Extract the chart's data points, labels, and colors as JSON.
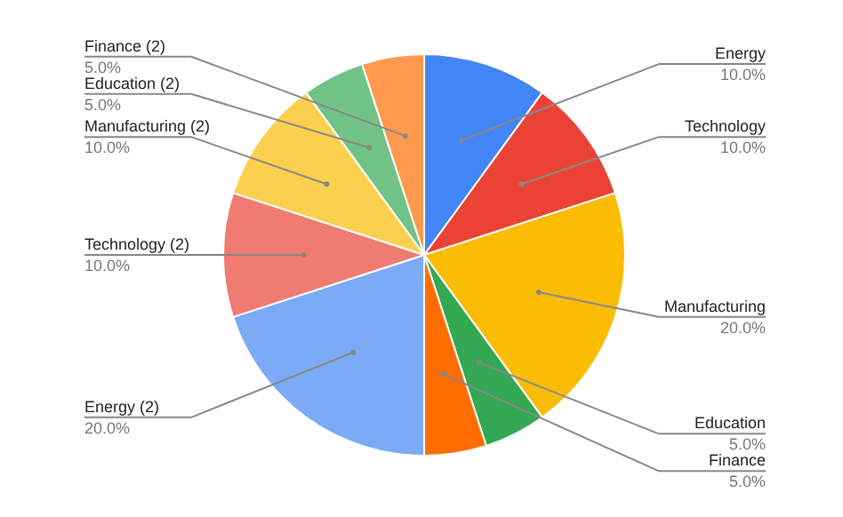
{
  "chart_data": {
    "type": "pie",
    "categories": [
      "Energy",
      "Technology",
      "Manufacturing",
      "Education",
      "Finance",
      "Energy (2)",
      "Technology (2)",
      "Manufacturing (2)",
      "Education (2)",
      "Finance (2)"
    ],
    "values": [
      10,
      10,
      20,
      5,
      5,
      20,
      10,
      10,
      5,
      5
    ],
    "value_labels": [
      "10.0%",
      "10.0%",
      "20.0%",
      "5.0%",
      "5.0%",
      "20.0%",
      "10.0%",
      "10.0%",
      "5.0%",
      "5.0%"
    ],
    "colors": [
      "#4285f4",
      "#ea4335",
      "#fbbc04",
      "#34a853",
      "#ff6d01",
      "#7baaf7",
      "#f07b72",
      "#fcd04f",
      "#71c287",
      "#ff994d"
    ]
  }
}
